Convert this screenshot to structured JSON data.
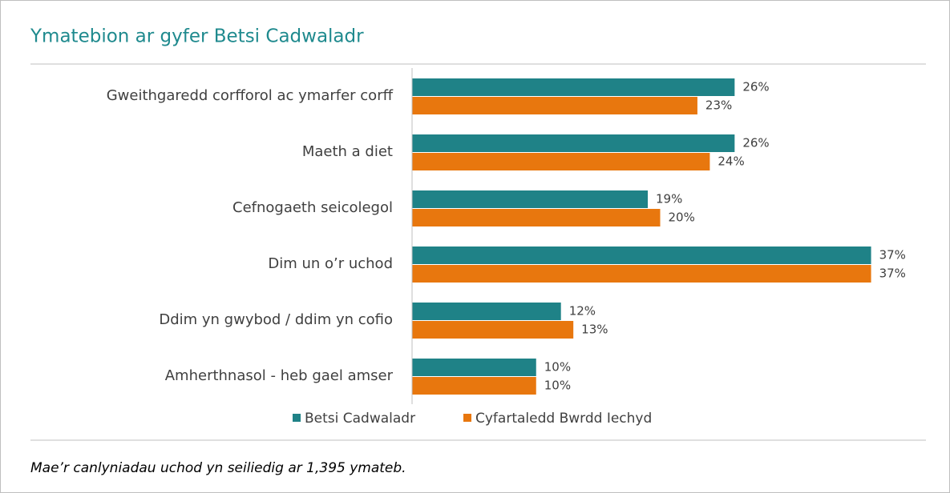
{
  "chart_data": {
    "type": "hbar",
    "title": "Ymatebion ar gyfer Betsi Cadwaladr",
    "categories": [
      "Gweithgaredd corfforol ac ymarfer corff",
      "Maeth a diet",
      "Cefnogaeth seicolegol",
      "Dim un o’r uchod",
      "Ddim yn gwybod / ddim yn cofio",
      "Amherthnasol - heb gael amser"
    ],
    "series": [
      {
        "name": "Betsi Cadwaladr",
        "color": "#1f8287",
        "values": [
          26,
          26,
          19,
          37,
          12,
          10
        ],
        "value_labels": [
          "26%",
          "26%",
          "19%",
          "37%",
          "12%",
          "10%"
        ]
      },
      {
        "name": "Cyfartaledd Bwrdd Iechyd",
        "color": "#e8770e",
        "values": [
          23,
          24,
          20,
          37,
          13,
          10
        ],
        "value_labels": [
          "23%",
          "24%",
          "20%",
          "37%",
          "13%",
          "10%"
        ]
      }
    ],
    "xlim": [
      0,
      40
    ],
    "legend": "bottom",
    "note": "Mae’r canlyniadau uchod yn seiliedig ar 1,395 ymateb."
  }
}
